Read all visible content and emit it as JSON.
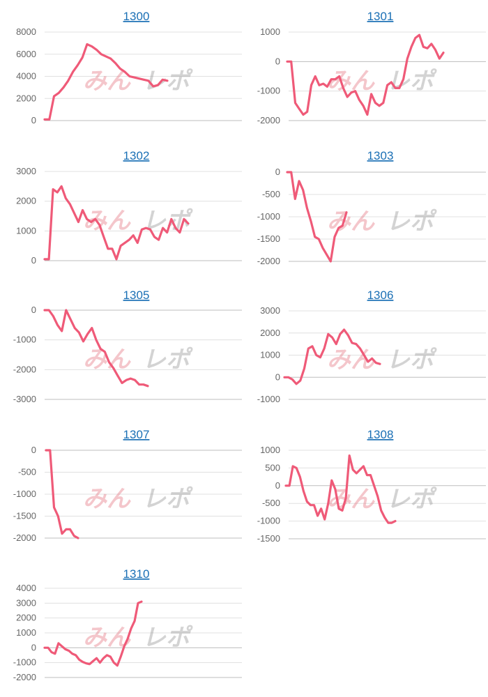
{
  "watermark": {
    "part1": "みん",
    "part2": "レポ",
    "color1": "#e57882",
    "color2": "#969696"
  },
  "line_color": "#ef5a78",
  "chart_data": [
    {
      "type": "line",
      "title": "1300",
      "ylim": [
        0,
        8000
      ],
      "ticks": [
        0,
        2000,
        4000,
        6000,
        8000
      ],
      "tick_labels": [
        "0",
        "2000",
        "4000",
        "6000",
        "8000"
      ],
      "values": [
        100,
        100,
        2200,
        2500,
        3000,
        3600,
        4400,
        5000,
        5700,
        6900,
        6700,
        6400,
        6000,
        5800,
        5600,
        5200,
        4700,
        4400,
        4000,
        3900,
        3800,
        3700,
        3600,
        3100,
        3200,
        3700,
        3600
      ]
    },
    {
      "type": "line",
      "title": "1301",
      "ylim": [
        -2000,
        1000
      ],
      "ticks": [
        -2000,
        -1000,
        0,
        1000
      ],
      "tick_labels": [
        "-2000",
        "-1000",
        "0",
        "1000"
      ],
      "values": [
        0,
        0,
        -1400,
        -1600,
        -1800,
        -1700,
        -800,
        -500,
        -800,
        -750,
        -850,
        -600,
        -600,
        -500,
        -900,
        -1200,
        -1050,
        -1000,
        -1300,
        -1500,
        -1800,
        -1100,
        -1400,
        -1500,
        -1400,
        -800,
        -700,
        -900,
        -900,
        -600,
        100,
        500,
        800,
        900,
        500,
        450,
        600,
        400,
        100,
        300
      ]
    },
    {
      "type": "line",
      "title": "1302",
      "ylim": [
        0,
        3000
      ],
      "ticks": [
        0,
        1000,
        2000,
        3000
      ],
      "tick_labels": [
        "0",
        "1000",
        "2000",
        "3000"
      ],
      "values": [
        50,
        50,
        2400,
        2300,
        2500,
        2100,
        1900,
        1600,
        1300,
        1700,
        1400,
        1300,
        1400,
        1200,
        800,
        400,
        400,
        50,
        500,
        600,
        700,
        850,
        600,
        1050,
        1100,
        1050,
        800,
        700,
        1100,
        950,
        1400,
        1100,
        950,
        1400,
        1250
      ]
    },
    {
      "type": "line",
      "title": "1303",
      "ylim": [
        -2000,
        0
      ],
      "ticks": [
        -2000,
        -1500,
        -1000,
        -500,
        0
      ],
      "tick_labels": [
        "-2000",
        "-1500",
        "-1000",
        "-500",
        "0"
      ],
      "values": [
        0,
        0,
        -600,
        -200,
        -400,
        -800,
        -1100,
        -1450,
        -1500,
        -1700,
        -1850,
        -2000,
        -1450,
        -1250,
        -1200,
        -900
      ]
    },
    {
      "type": "line",
      "title": "1305",
      "ylim": [
        -3000,
        0
      ],
      "ticks": [
        -3000,
        -2000,
        -1000,
        0
      ],
      "tick_labels": [
        "-3000",
        "-2000",
        "-1000",
        "0"
      ],
      "values": [
        0,
        0,
        -200,
        -500,
        -700,
        0,
        -300,
        -600,
        -750,
        -1050,
        -800,
        -600,
        -1000,
        -1300,
        -1400,
        -1750,
        -1950,
        -2200,
        -2450,
        -2350,
        -2300,
        -2350,
        -2500,
        -2500,
        -2550
      ]
    },
    {
      "type": "line",
      "title": "1306",
      "ylim": [
        -1000,
        3000
      ],
      "ticks": [
        -1000,
        0,
        1000,
        2000,
        3000
      ],
      "tick_labels": [
        "-1000",
        "0",
        "1000",
        "2000",
        "3000"
      ],
      "values": [
        0,
        0,
        -100,
        -300,
        -150,
        400,
        1300,
        1400,
        1000,
        900,
        1300,
        1950,
        1800,
        1500,
        1950,
        2150,
        1900,
        1550,
        1500,
        1300,
        1000,
        700,
        850,
        650,
        600
      ]
    },
    {
      "type": "line",
      "title": "1307",
      "ylim": [
        -2000,
        0
      ],
      "ticks": [
        -2000,
        -1500,
        -1000,
        -500,
        0
      ],
      "tick_labels": [
        "-2000",
        "-1500",
        "-1000",
        "-500",
        "0"
      ],
      "values": [
        0,
        0,
        -1300,
        -1500,
        -1900,
        -1800,
        -1800,
        -1950,
        -2000
      ]
    },
    {
      "type": "line",
      "title": "1308",
      "ylim": [
        -1500,
        1000
      ],
      "ticks": [
        -1500,
        -1000,
        -500,
        0,
        500,
        1000
      ],
      "tick_labels": [
        "-1500",
        "-1000",
        "-500",
        "0",
        "500",
        "1000"
      ],
      "values": [
        0,
        0,
        550,
        500,
        250,
        -150,
        -450,
        -550,
        -550,
        -850,
        -650,
        -950,
        -500,
        150,
        -100,
        -650,
        -700,
        -350,
        850,
        450,
        350,
        450,
        550,
        300,
        300,
        0,
        -300,
        -700,
        -900,
        -1050,
        -1050,
        -1000
      ]
    },
    {
      "type": "line",
      "title": "1310",
      "ylim": [
        -2000,
        4000
      ],
      "ticks": [
        -2000,
        -1000,
        0,
        1000,
        2000,
        3000,
        4000
      ],
      "tick_labels": [
        "-2000",
        "-1000",
        "0",
        "1000",
        "2000",
        "3000",
        "4000"
      ],
      "values": [
        0,
        0,
        -300,
        -400,
        300,
        100,
        -100,
        -200,
        -400,
        -500,
        -800,
        -950,
        -1050,
        -1100,
        -900,
        -700,
        -1000,
        -700,
        -500,
        -600,
        -1000,
        -1200,
        -600,
        100,
        600,
        1300,
        1800,
        3000,
        3100
      ]
    }
  ]
}
